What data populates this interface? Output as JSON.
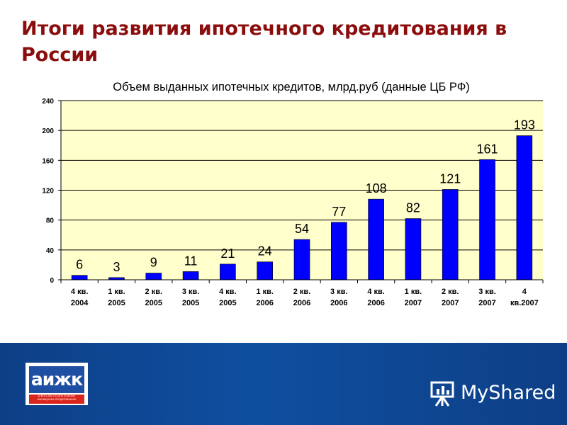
{
  "slide": {
    "title": "Итоги развития ипотечного кредитования в России"
  },
  "colors": {
    "title": "#8b0d0d",
    "bar": "#0000ff",
    "plot_background": "#ffffcc",
    "footer": "#0d3f86"
  },
  "chart_data": {
    "type": "bar",
    "title": "Объем выданных ипотечных кредитов, млрд.руб (данные ЦБ РФ)",
    "xlabel": "",
    "ylabel": "",
    "categories": [
      [
        "4 кв.",
        "2004"
      ],
      [
        "1 кв.",
        "2005"
      ],
      [
        "2 кв.",
        "2005"
      ],
      [
        "3 кв.",
        "2005"
      ],
      [
        "4 кв.",
        "2005"
      ],
      [
        "1 кв.",
        "2006"
      ],
      [
        "2 кв.",
        "2006"
      ],
      [
        "3 кв.",
        "2006"
      ],
      [
        "4 кв.",
        "2006"
      ],
      [
        "1 кв.",
        "2007"
      ],
      [
        "2 кв.",
        "2007"
      ],
      [
        "3 кв.",
        "2007"
      ],
      [
        "4",
        "кв.2007"
      ]
    ],
    "values": [
      6,
      3,
      9,
      11,
      21,
      24,
      54,
      77,
      108,
      82,
      121,
      161,
      193
    ],
    "data_labels": [
      "6",
      "3",
      "9",
      "11",
      "21",
      "24",
      "54",
      "77",
      "108",
      "82",
      "121",
      "161",
      "193"
    ],
    "ylim": [
      0,
      240
    ],
    "yticks": [
      "0",
      "40",
      "80",
      "120",
      "160",
      "200",
      "240"
    ],
    "grid": true,
    "legend": "none"
  },
  "footer": {
    "logo": {
      "mark": "аижк",
      "subtitle": "АГЕНТСТВО ПО ИПОТЕЧНОМУ ЖИЛИЩНОМУ КРЕДИТОВАНИЮ"
    },
    "brand": "MyShared",
    "brand_icon": "presentation-screen-icon"
  }
}
